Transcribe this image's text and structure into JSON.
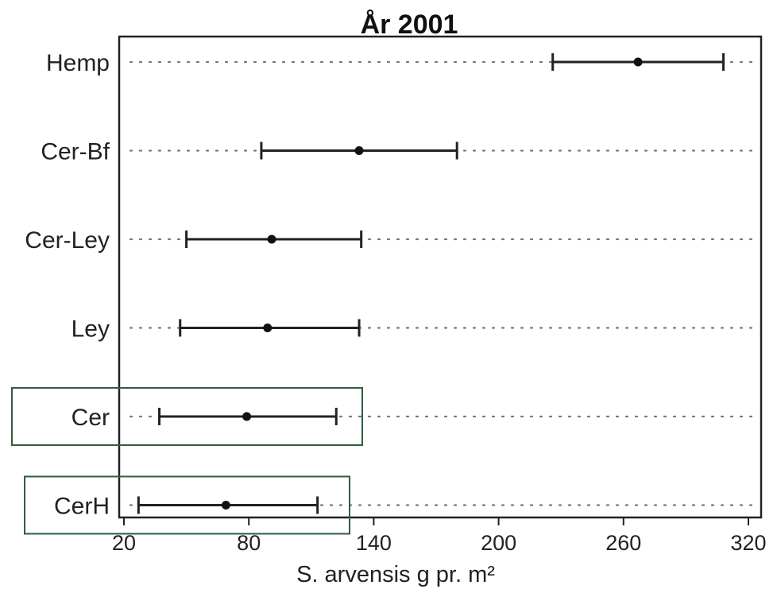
{
  "chart_data": {
    "type": "dot-errorbar",
    "title": "År 2001",
    "xlabel": "S. arvensis g pr. m²",
    "ylabel": "",
    "xlim": [
      20,
      320
    ],
    "xticks": [
      20,
      80,
      140,
      200,
      260,
      320
    ],
    "grid": "dotted horizontal lines",
    "categories": [
      "Hemp",
      "Cer-Bf",
      "Cer-Ley",
      "Ley",
      "Cer",
      "CerH"
    ],
    "points": [
      {
        "category": "Hemp",
        "mean": 267,
        "low": 226,
        "high": 308
      },
      {
        "category": "Cer-Bf",
        "mean": 133,
        "low": 86,
        "high": 180
      },
      {
        "category": "Cer-Ley",
        "mean": 91,
        "low": 50,
        "high": 134
      },
      {
        "category": "Ley",
        "mean": 89,
        "low": 47,
        "high": 133
      },
      {
        "category": "Cer",
        "mean": 79,
        "low": 37,
        "high": 122
      },
      {
        "category": "CerH",
        "mean": 69,
        "low": 27,
        "high": 113
      }
    ],
    "highlighted": [
      "Cer",
      "CerH"
    ],
    "colors": {
      "marks": "#111111",
      "highlight_box": "#2e5e3e",
      "grid": "#777777"
    }
  }
}
